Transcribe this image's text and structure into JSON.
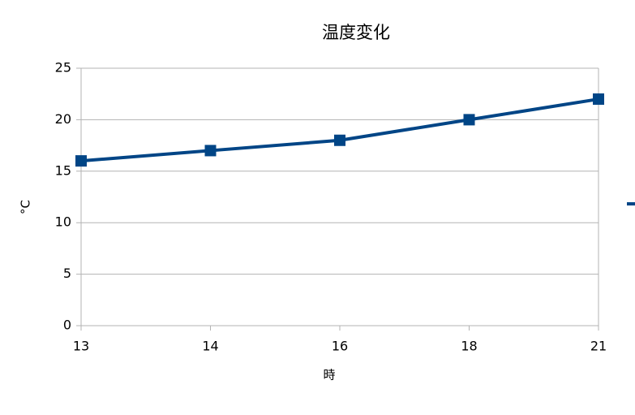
{
  "chart_data": {
    "type": "line",
    "title": "温度変化",
    "x_label": "時",
    "y_label": "°C",
    "categories": [
      "13",
      "14",
      "16",
      "18",
      "21"
    ],
    "series": [
      {
        "color": "#004586",
        "values": [
          16,
          17,
          18,
          20,
          22
        ]
      }
    ],
    "ylim": [
      0,
      25
    ],
    "yticks": [
      0,
      5,
      10,
      15,
      20,
      25
    ],
    "grid": true
  }
}
